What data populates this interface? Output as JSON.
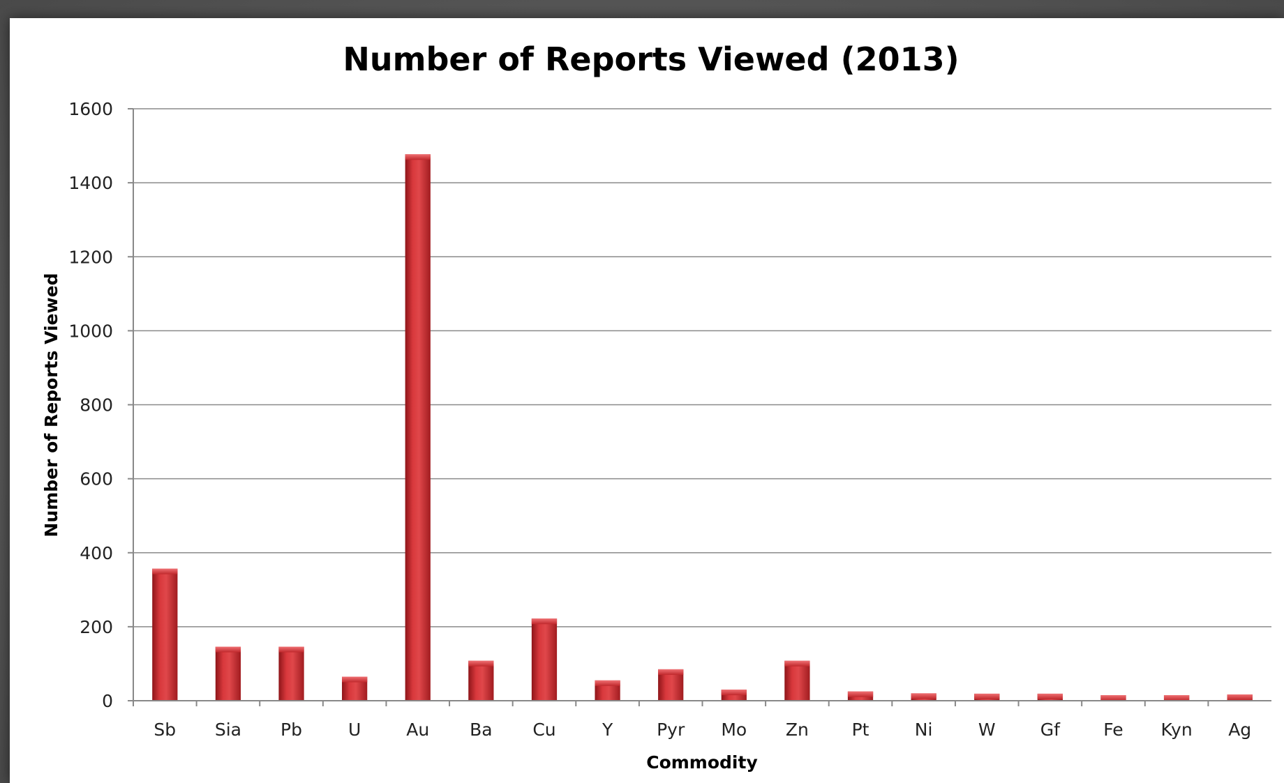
{
  "chart_data": {
    "type": "bar",
    "title": "Number of Reports Viewed (2013)",
    "xlabel": "Commodity",
    "ylabel": "Number of Reports Viewed",
    "ylim": [
      0,
      1600
    ],
    "yticks": [
      0,
      200,
      400,
      600,
      800,
      1000,
      1200,
      1400,
      1600
    ],
    "grid": true,
    "bar_color": "#c0282c",
    "categories": [
      "Sb",
      "Sia",
      "Pb",
      "U",
      "Au",
      "Ba",
      "Cu",
      "Y",
      "Pyr",
      "Mo",
      "Zn",
      "Pt",
      "Ni",
      "W",
      "Gf",
      "Fe",
      "Kyn",
      "Ag"
    ],
    "values": [
      357,
      146,
      146,
      65,
      1477,
      108,
      222,
      55,
      85,
      30,
      108,
      25,
      20,
      19,
      19,
      15,
      15,
      17
    ]
  }
}
